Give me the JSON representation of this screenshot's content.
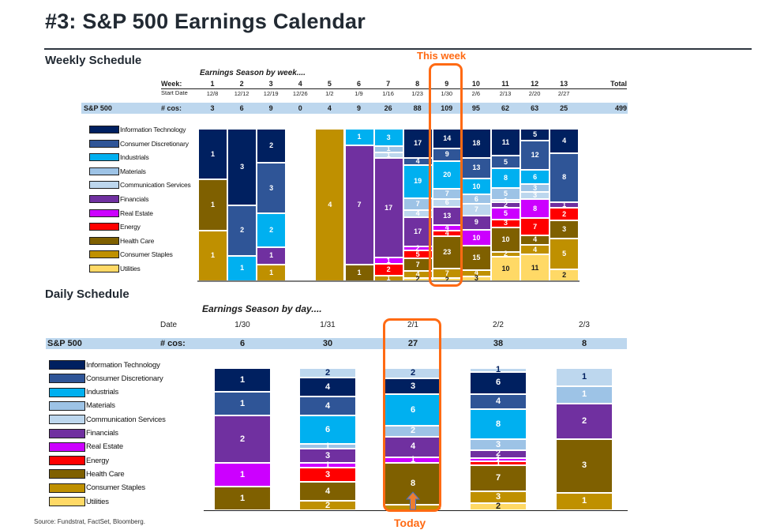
{
  "title": "#3: S&P 500 Earnings Calendar",
  "source": "Source: Fundstrat, FactSet, Bloomberg.",
  "sectors": [
    {
      "key": "it",
      "label": "Information Technology",
      "color": "#002060",
      "text_color": "#ffffff"
    },
    {
      "key": "cd",
      "label": "Consumer Discretionary",
      "color": "#2f5597",
      "text_color": "#ffffff"
    },
    {
      "key": "ind",
      "label": "Industrials",
      "color": "#00b0f0",
      "text_color": "#ffffff"
    },
    {
      "key": "mat",
      "label": "Materials",
      "color": "#9dc3e6",
      "text_color": "#ffffff"
    },
    {
      "key": "comm",
      "label": "Communication Services",
      "color": "#bdd7ee",
      "text_color": "#ffffff"
    },
    {
      "key": "fin",
      "label": "Financials",
      "color": "#7030a0",
      "text_color": "#ffffff"
    },
    {
      "key": "re",
      "label": "Real Estate",
      "color": "#cc00ff",
      "text_color": "#ffffff"
    },
    {
      "key": "en",
      "label": "Energy",
      "color": "#ff0000",
      "text_color": "#ffffff"
    },
    {
      "key": "hc",
      "label": "Health Care",
      "color": "#7f6000",
      "text_color": "#ffffff"
    },
    {
      "key": "cs",
      "label": "Consumer Staples",
      "color": "#bf9000",
      "text_color": "#ffffff"
    },
    {
      "key": "util",
      "label": "Utilities",
      "color": "#ffd966",
      "text_color": "#1c1c1c"
    }
  ],
  "weekly": {
    "section_title": "Weekly Schedule",
    "subtitle": "Earnings Season by week....",
    "week_label": "Week:",
    "start_date_label": "Start Date",
    "row_label": "S&P 500",
    "cos_label": "# cos:",
    "total_label": "Total",
    "total_value": "499",
    "highlight_label": "This week",
    "highlight_week": "9"
  },
  "daily": {
    "section_title": "Daily Schedule",
    "subtitle": "Earnings Season by day....",
    "date_label": "Date",
    "row_label": "S&P 500",
    "cos_label": "# cos:",
    "highlight_label": "Today",
    "highlight_date": "2/1"
  },
  "chart_data": [
    {
      "type": "bar",
      "stacking": "percent",
      "title": "Earnings Season by week....",
      "categories": [
        "1",
        "2",
        "3",
        "4",
        "5",
        "6",
        "7",
        "8",
        "9",
        "10",
        "11",
        "12",
        "13"
      ],
      "start_dates": [
        "12/8",
        "12/12",
        "12/19",
        "12/26",
        "1/2",
        "1/9",
        "1/16",
        "1/23",
        "1/30",
        "2/6",
        "2/13",
        "2/20",
        "2/27"
      ],
      "totals": [
        3,
        6,
        9,
        0,
        4,
        9,
        26,
        88,
        109,
        95,
        62,
        63,
        25
      ],
      "stack_order_top_to_bottom": [
        "it",
        "cd",
        "ind",
        "mat",
        "comm",
        "fin",
        "re",
        "en",
        "hc",
        "cs",
        "util"
      ],
      "series": [
        {
          "name": "Information Technology",
          "key": "it",
          "values": [
            1,
            3,
            2,
            0,
            0,
            0,
            0,
            17,
            14,
            18,
            11,
            5,
            4
          ]
        },
        {
          "name": "Consumer Discretionary",
          "key": "cd",
          "values": [
            0,
            2,
            3,
            0,
            0,
            0,
            0,
            4,
            9,
            13,
            5,
            12,
            8
          ]
        },
        {
          "name": "Industrials",
          "key": "ind",
          "values": [
            0,
            1,
            2,
            0,
            0,
            1,
            3,
            19,
            20,
            10,
            8,
            6,
            0
          ]
        },
        {
          "name": "Materials",
          "key": "mat",
          "values": [
            0,
            0,
            0,
            0,
            0,
            0,
            1,
            7,
            7,
            6,
            5,
            3,
            0
          ]
        },
        {
          "name": "Communication Services",
          "key": "comm",
          "values": [
            0,
            0,
            0,
            0,
            0,
            0,
            1,
            4,
            6,
            7,
            1,
            3,
            0
          ]
        },
        {
          "name": "Financials",
          "key": "fin",
          "values": [
            0,
            0,
            1,
            0,
            0,
            7,
            17,
            17,
            13,
            9,
            2,
            0,
            1
          ]
        },
        {
          "name": "Real Estate",
          "key": "re",
          "values": [
            0,
            0,
            0,
            0,
            0,
            0,
            1,
            2,
            4,
            10,
            5,
            8,
            0
          ]
        },
        {
          "name": "Energy",
          "key": "en",
          "values": [
            0,
            0,
            0,
            0,
            0,
            0,
            2,
            5,
            4,
            0,
            3,
            7,
            2
          ]
        },
        {
          "name": "Health Care",
          "key": "hc",
          "values": [
            1,
            0,
            0,
            0,
            0,
            1,
            0,
            7,
            23,
            15,
            10,
            4,
            3
          ]
        },
        {
          "name": "Consumer Staples",
          "key": "cs",
          "values": [
            1,
            0,
            1,
            0,
            4,
            0,
            1,
            4,
            7,
            4,
            2,
            4,
            5
          ]
        },
        {
          "name": "Utilities",
          "key": "util",
          "values": [
            0,
            0,
            0,
            0,
            0,
            0,
            0,
            2,
            2,
            3,
            10,
            11,
            2
          ]
        }
      ],
      "legend": "left",
      "grid": false
    },
    {
      "type": "bar",
      "stacking": "percent",
      "title": "Earnings Season by day....",
      "categories": [
        "1/30",
        "1/31",
        "2/1",
        "2/2",
        "2/3"
      ],
      "totals": [
        6,
        30,
        27,
        38,
        8
      ],
      "stack_order_top_to_bottom": [
        "comm",
        "it",
        "cd",
        "ind",
        "mat",
        "fin",
        "re",
        "en",
        "hc",
        "cs",
        "util"
      ],
      "series": [
        {
          "name": "Communication Services",
          "key": "comm",
          "values": [
            0,
            2,
            2,
            1,
            1
          ]
        },
        {
          "name": "Information Technology",
          "key": "it",
          "values": [
            1,
            4,
            3,
            6,
            0
          ]
        },
        {
          "name": "Consumer Discretionary",
          "key": "cd",
          "values": [
            1,
            4,
            0,
            4,
            0
          ]
        },
        {
          "name": "Industrials",
          "key": "ind",
          "values": [
            0,
            6,
            6,
            8,
            0
          ]
        },
        {
          "name": "Materials",
          "key": "mat",
          "values": [
            0,
            1,
            2,
            3,
            1
          ]
        },
        {
          "name": "Financials",
          "key": "fin",
          "values": [
            2,
            3,
            4,
            2,
            2
          ]
        },
        {
          "name": "Real Estate",
          "key": "re",
          "values": [
            1,
            1,
            1,
            1,
            0
          ]
        },
        {
          "name": "Energy",
          "key": "en",
          "values": [
            0,
            3,
            0,
            1,
            0
          ]
        },
        {
          "name": "Health Care",
          "key": "hc",
          "values": [
            1,
            4,
            8,
            7,
            3
          ]
        },
        {
          "name": "Consumer Staples",
          "key": "cs",
          "values": [
            0,
            2,
            1,
            3,
            1
          ]
        },
        {
          "name": "Utilities",
          "key": "util",
          "values": [
            0,
            0,
            0,
            2,
            0
          ]
        }
      ],
      "legend": "left",
      "grid": false
    }
  ]
}
